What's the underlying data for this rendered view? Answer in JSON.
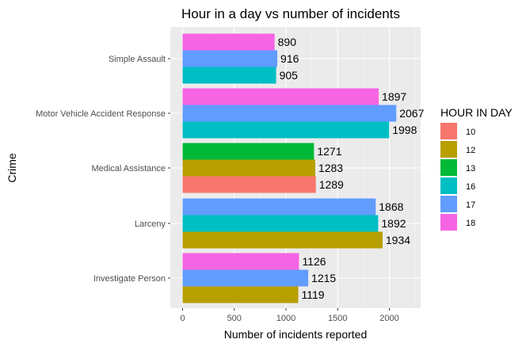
{
  "chart_data": {
    "type": "bar",
    "orientation": "horizontal",
    "title": "Hour in a day vs number of incidents",
    "xlabel": "Number of incidents reported",
    "ylabel": "Crime",
    "xlim": [
      0,
      2250
    ],
    "x_ticks": [
      0,
      500,
      1000,
      1500,
      2000
    ],
    "grid": true,
    "legend": {
      "title": "HOUR IN DAY",
      "placement": "right",
      "entries": [
        {
          "label": "10",
          "color": "#F8766D"
        },
        {
          "label": "12",
          "color": "#B79F00"
        },
        {
          "label": "13",
          "color": "#00BA38"
        },
        {
          "label": "16",
          "color": "#00BFC4"
        },
        {
          "label": "17",
          "color": "#619CFF"
        },
        {
          "label": "18",
          "color": "#F564E3"
        }
      ]
    },
    "categories": [
      {
        "name": "Simple Assault",
        "bars": [
          {
            "hour": "18",
            "value": 890
          },
          {
            "hour": "17",
            "value": 916
          },
          {
            "hour": "16",
            "value": 905
          }
        ]
      },
      {
        "name": "Motor Vehicle Accident Response",
        "bars": [
          {
            "hour": "18",
            "value": 1897
          },
          {
            "hour": "17",
            "value": 2067
          },
          {
            "hour": "16",
            "value": 1998
          }
        ]
      },
      {
        "name": "Medical Assistance",
        "bars": [
          {
            "hour": "13",
            "value": 1271
          },
          {
            "hour": "12",
            "value": 1283
          },
          {
            "hour": "10",
            "value": 1289
          }
        ]
      },
      {
        "name": "Larceny",
        "bars": [
          {
            "hour": "17",
            "value": 1868
          },
          {
            "hour": "16",
            "value": 1892
          },
          {
            "hour": "12",
            "value": 1934
          }
        ]
      },
      {
        "name": "Investigate Person",
        "bars": [
          {
            "hour": "18",
            "value": 1126
          },
          {
            "hour": "17",
            "value": 1215
          },
          {
            "hour": "12",
            "value": 1119
          }
        ]
      }
    ]
  }
}
